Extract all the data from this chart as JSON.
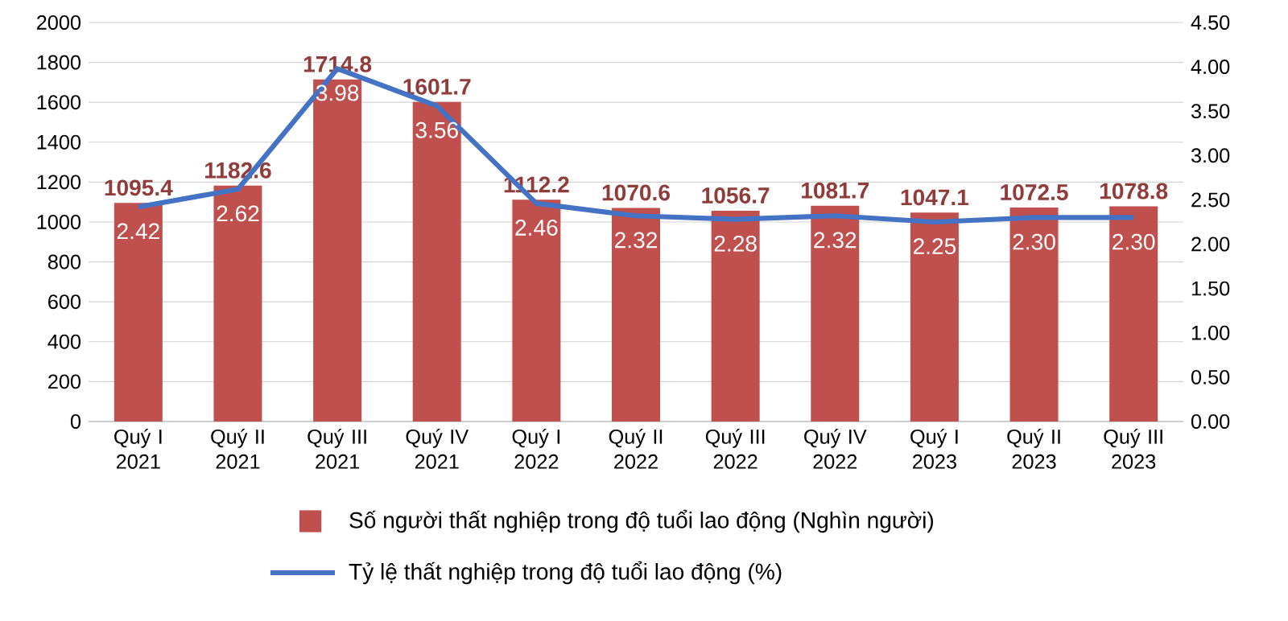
{
  "chart_data": {
    "type": "bar",
    "categories": [
      "Quý I 2021",
      "Quý II 2021",
      "Quý III 2021",
      "Quý IV 2021",
      "Quý I 2022",
      "Quý II 2022",
      "Quý III 2022",
      "Quý IV 2022",
      "Quý I 2023",
      "Quý II 2023",
      "Quý III 2023"
    ],
    "series": [
      {
        "name": "Số người thất nghiệp trong độ tuổi lao động (Nghìn người)",
        "color": "#c0504d",
        "values": [
          1095.4,
          1182.6,
          1714.8,
          1601.7,
          1112.2,
          1070.6,
          1056.7,
          1081.7,
          1047.1,
          1072.5,
          1078.8
        ]
      },
      {
        "name": "Tỷ lệ thất nghiệp trong độ tuổi lao động (%)",
        "type": "line",
        "axis": "y2",
        "color": "#4472c4",
        "values": [
          2.42,
          2.62,
          3.98,
          3.56,
          2.46,
          2.32,
          2.28,
          2.32,
          2.25,
          2.3,
          2.3
        ],
        "value_labels": [
          "2.42",
          "2.62",
          "3.98",
          "3.56",
          "2.46",
          "2.32",
          "2.28",
          "2.32",
          "2.25",
          "2.30",
          "2.30"
        ]
      }
    ],
    "data_labels": true,
    "ylim": [
      0,
      2000
    ],
    "yticks": [
      0,
      200,
      400,
      600,
      800,
      1000,
      1200,
      1400,
      1600,
      1800,
      2000
    ],
    "y2lim": [
      0,
      4.5
    ],
    "y2ticks": [
      {
        "value": 0,
        "label": "0.00"
      },
      {
        "value": 0.5,
        "label": "0.50"
      },
      {
        "value": 1,
        "label": "1.00"
      },
      {
        "value": 1.5,
        "label": "1.50"
      },
      {
        "value": 2,
        "label": "2.00"
      },
      {
        "value": 2.5,
        "label": "2.50"
      },
      {
        "value": 3,
        "label": "3.00"
      },
      {
        "value": 3.5,
        "label": "3.50"
      },
      {
        "value": 4,
        "label": "4.00"
      },
      {
        "value": 4.5,
        "label": "4.50"
      }
    ],
    "grid": "y",
    "legend": "bottom"
  }
}
